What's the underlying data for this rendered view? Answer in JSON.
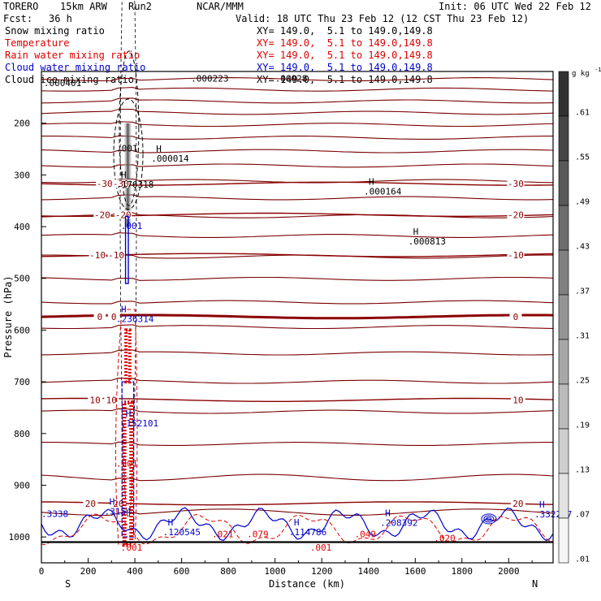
{
  "header": {
    "model": "TORERO",
    "resolution": "15km ARW",
    "run": "Run2",
    "center": "NCAR/MMM",
    "init": "Init: 06 UTC Wed 22 Feb 12",
    "fcst_label": "Fcst:",
    "fcst_value": "36 h",
    "valid": "Valid: 18 UTC Thu 23 Feb 12 (12 CST Thu 23 Feb 12)"
  },
  "fields": [
    {
      "name": "Snow mixing ratio",
      "xy": "XY= 149.0,  5.1 to 149.0,149.8",
      "color": "#000000"
    },
    {
      "name": "Temperature",
      "xy": "XY= 149.0,  5.1 to 149.0,149.8",
      "color": "#dd0000"
    },
    {
      "name": "Rain water mixing ratio",
      "xy": "XY= 149.0,  5.1 to 149.0,149.8",
      "color": "#dd0000"
    },
    {
      "name": "Cloud water mixing ratio",
      "xy": "XY= 149.0,  5.1 to 149.0,149.8",
      "color": "#0000cc"
    },
    {
      "name": "Cloud ice mixing ratio",
      "xy": "XY= 149.0,  5.1 to 149.0,149.8",
      "color": "#000000"
    }
  ],
  "chart_data": {
    "type": "cross-section contour",
    "xlabel": "Distance (km)",
    "ylabel": "Pressure (hPa)",
    "xlim": [
      0,
      2190
    ],
    "ylim": [
      1050,
      100
    ],
    "x_ticks": [
      0,
      200,
      400,
      600,
      800,
      1000,
      1200,
      1400,
      1600,
      1800,
      2000
    ],
    "y_ticks": [
      200,
      300,
      400,
      500,
      600,
      700,
      800,
      900,
      1000
    ],
    "left_endpoint": "S",
    "right_endpoint": "N",
    "temperature_isotherms": [
      {
        "label": "-30",
        "pressure": 317,
        "label_x": [
          270,
          340,
          2030
        ]
      },
      {
        "label": "-20",
        "pressure": 377,
        "label_x": [
          260,
          350,
          2030
        ]
      },
      {
        "label": "-10",
        "pressure": 455,
        "label_x": [
          240,
          320,
          2030
        ]
      },
      {
        "label": "0",
        "pressure": 574,
        "label_x": [
          250,
          310,
          2030
        ]
      },
      {
        "label": "10",
        "pressure": 735,
        "label_x": [
          230,
          300,
          2040
        ]
      },
      {
        "label": "20",
        "pressure": 935,
        "label_x": [
          210,
          330,
          2040
        ]
      }
    ],
    "theta_pressures": [
      115,
      135,
      158,
      180,
      203,
      228,
      254,
      282,
      312,
      345,
      380,
      418,
      458,
      501,
      546,
      594,
      645,
      700,
      758,
      820,
      885,
      952
    ],
    "markers": [
      {
        "symbol": "H",
        "value": ".000014",
        "x": 470,
        "p": 268,
        "color": "#000000"
      },
      {
        "symbol": "H",
        "value": ".176318",
        "x": 320,
        "p": 318,
        "color": "#000000"
      },
      {
        "symbol": "H",
        "value": ".000164",
        "x": 1380,
        "p": 332,
        "color": "#000000"
      },
      {
        "symbol": "H",
        "value": ".000813",
        "x": 1570,
        "p": 428,
        "color": "#000000"
      },
      {
        "symbol": "H",
        "value": ".236314",
        "x": 320,
        "p": 578,
        "color": "#0000cc"
      },
      {
        "symbol": "H",
        "value": ".152101",
        "x": 340,
        "p": 780,
        "color": "#0000cc"
      },
      {
        "symbol": "H",
        "value": ".3154",
        "x": 270,
        "p": 950,
        "color": "#0000cc"
      },
      {
        "symbol": "H",
        "value": ".120545",
        "x": 520,
        "p": 990,
        "color": "#0000cc"
      },
      {
        "symbol": "H",
        "value": ".114786",
        "x": 1060,
        "p": 990,
        "color": "#0000cc"
      },
      {
        "symbol": "H",
        "value": ".208392",
        "x": 1450,
        "p": 972,
        "color": "#0000cc"
      },
      {
        "symbol": "H",
        "value": ".332257",
        "x": 2110,
        "p": 956,
        "color": "#0000cc"
      }
    ],
    "contour_labels": [
      {
        "text": ".000223",
        "x": 640,
        "p": 113,
        "color": "#000000"
      },
      {
        "text": ".00028",
        "x": 1000,
        "p": 113,
        "color": "#000000"
      },
      {
        "text": ".000401",
        "x": 10,
        "p": 122,
        "color": "#000000"
      },
      {
        "text": ".001",
        "x": 320,
        "p": 248,
        "color": "#000000"
      },
      {
        "text": ".001",
        "x": 340,
        "p": 398,
        "color": "#0000cc"
      },
      {
        "text": ".001",
        "x": 320,
        "p": 858,
        "color": "#dd0000"
      },
      {
        "text": ".3338",
        "x": 0,
        "p": 955,
        "color": "#0000cc"
      },
      {
        "text": ".021",
        "x": 730,
        "p": 994,
        "color": "#dd0000"
      },
      {
        "text": ".079",
        "x": 880,
        "p": 994,
        "color": "#dd0000"
      },
      {
        "text": ".049",
        "x": 1340,
        "p": 994,
        "color": "#dd0000"
      },
      {
        "text": ".020",
        "x": 1680,
        "p": 1002,
        "color": "#dd0000"
      },
      {
        "text": ".001",
        "x": 1150,
        "p": 1020,
        "color": "#dd0000"
      },
      {
        "text": ".001",
        "x": 340,
        "p": 1020,
        "color": "#dd0000"
      }
    ],
    "colorbar": {
      "unit": "g kg",
      "unit_exp": "-1",
      "ticks": [
        ".61",
        ".55",
        ".49",
        ".43",
        ".37",
        ".31",
        ".25",
        ".19",
        ".13",
        ".07",
        ".01"
      ]
    }
  }
}
